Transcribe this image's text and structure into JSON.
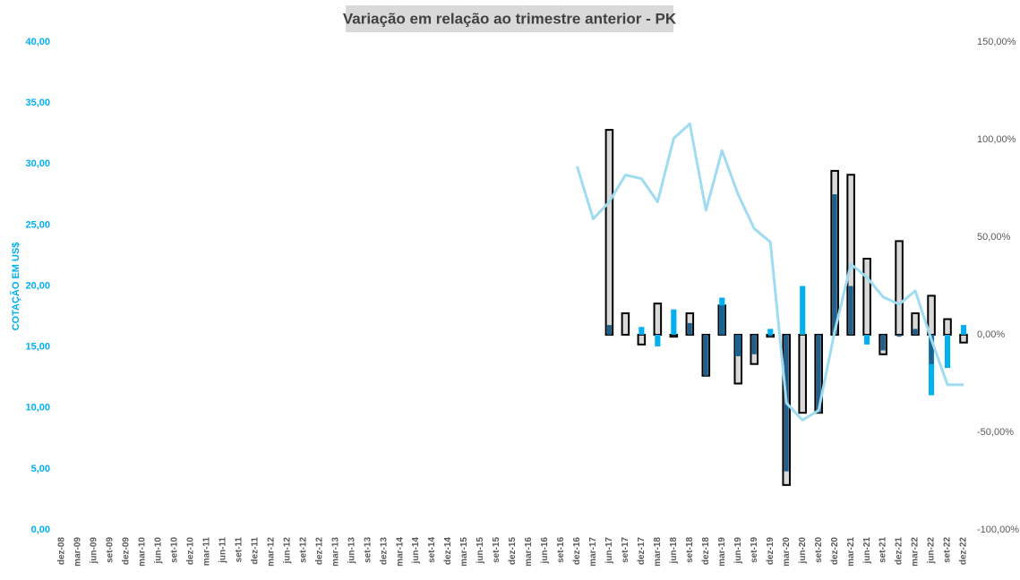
{
  "chart_data": {
    "type": "bar_line",
    "title": "Variação em relação ao trimestre anterior - PK",
    "y_label": "COTAÇÃO EM US$",
    "categories": [
      "dez-08",
      "mar-09",
      "jun-09",
      "set-09",
      "dez-09",
      "mar-10",
      "jun-10",
      "set-10",
      "dez-10",
      "mar-11",
      "jun-11",
      "set-11",
      "dez-11",
      "mar-12",
      "jun-12",
      "set-12",
      "dez-12",
      "mar-13",
      "jun-13",
      "set-13",
      "dez-13",
      "mar-14",
      "jun-14",
      "set-14",
      "dez-14",
      "mar-15",
      "jun-15",
      "set-15",
      "dez-15",
      "mar-16",
      "jun-16",
      "set-16",
      "dez-16",
      "mar-17",
      "jun-17",
      "set-17",
      "dez-17",
      "mar-18",
      "jun-18",
      "set-18",
      "dez-18",
      "mar-19",
      "jun-19",
      "set-19",
      "dez-19",
      "mar-20",
      "jun-20",
      "set-20",
      "dez-20",
      "mar-21",
      "jun-21",
      "set-21",
      "dez-21",
      "mar-22",
      "jun-22",
      "set-22",
      "dez-22"
    ],
    "ylim": [
      0,
      40
    ],
    "yticks": [
      {
        "value": 0,
        "label": "0,00"
      },
      {
        "value": 5,
        "label": "5,00"
      },
      {
        "value": 10,
        "label": "10,00"
      },
      {
        "value": 15,
        "label": "15,00"
      },
      {
        "value": 20,
        "label": "20,00"
      },
      {
        "value": 25,
        "label": "25,00"
      },
      {
        "value": 30,
        "label": "30,00"
      },
      {
        "value": 35,
        "label": "35,00"
      },
      {
        "value": 40,
        "label": "40,00"
      }
    ],
    "y2lim": [
      -100,
      150
    ],
    "y2ticks": [
      {
        "value": -100,
        "label": "-100,00%"
      },
      {
        "value": -50,
        "label": "-50,00%"
      },
      {
        "value": 0,
        "label": "0,00%"
      },
      {
        "value": 50,
        "label": "50,00%"
      },
      {
        "value": 100,
        "label": "100,00%"
      },
      {
        "value": 150,
        "label": "150,00%"
      }
    ],
    "series": [
      {
        "kind": "bar",
        "axis": "y2",
        "color": "#d9d9d9",
        "stroke": "#000000",
        "values": [
          null,
          null,
          null,
          null,
          null,
          null,
          null,
          null,
          null,
          null,
          null,
          null,
          null,
          null,
          null,
          null,
          null,
          null,
          null,
          null,
          null,
          null,
          null,
          null,
          null,
          null,
          null,
          null,
          null,
          null,
          null,
          null,
          null,
          null,
          105,
          11,
          -5,
          16,
          -1,
          11,
          -21,
          15,
          -25,
          -15,
          -1,
          -77,
          -40,
          -40,
          84,
          82,
          39,
          -10,
          48,
          11,
          20,
          8,
          -4
        ]
      },
      {
        "kind": "bar",
        "axis": "y2",
        "color": "#00b0f0",
        "values": [
          null,
          null,
          null,
          null,
          null,
          null,
          null,
          null,
          null,
          null,
          null,
          null,
          null,
          null,
          null,
          null,
          null,
          null,
          null,
          null,
          null,
          null,
          null,
          null,
          null,
          null,
          null,
          null,
          null,
          null,
          null,
          null,
          null,
          null,
          null,
          null,
          4,
          -6,
          13,
          null,
          null,
          19,
          -11,
          null,
          3,
          null,
          25,
          null,
          null,
          null,
          -5,
          null,
          null,
          null,
          -31,
          -17,
          5
        ]
      },
      {
        "kind": "bar",
        "axis": "y2",
        "color": "#1f5f8b",
        "values": [
          null,
          null,
          null,
          null,
          null,
          null,
          null,
          null,
          null,
          null,
          null,
          null,
          null,
          null,
          null,
          null,
          null,
          null,
          null,
          null,
          null,
          null,
          null,
          null,
          null,
          null,
          null,
          null,
          null,
          null,
          null,
          null,
          null,
          null,
          5,
          null,
          null,
          null,
          null,
          6,
          -21,
          15,
          -11,
          -10,
          -1,
          -70,
          null,
          -40,
          72,
          25,
          null,
          -8,
          -1,
          3,
          -15,
          null,
          null
        ]
      },
      {
        "kind": "line",
        "axis": "y",
        "color": "#9fdcf2",
        "values": [
          null,
          null,
          null,
          null,
          null,
          null,
          null,
          null,
          null,
          null,
          null,
          null,
          null,
          null,
          null,
          null,
          null,
          null,
          null,
          null,
          null,
          null,
          null,
          null,
          null,
          null,
          null,
          null,
          null,
          null,
          null,
          null,
          29.8,
          25.5,
          26.9,
          29.1,
          28.8,
          26.9,
          32.1,
          33.3,
          26.2,
          31.1,
          27.5,
          24.7,
          23.6,
          10.4,
          9.0,
          9.8,
          16.3,
          21.8,
          20.7,
          19.1,
          18.5,
          19.6,
          15.6,
          11.9,
          11.9
        ]
      }
    ]
  }
}
